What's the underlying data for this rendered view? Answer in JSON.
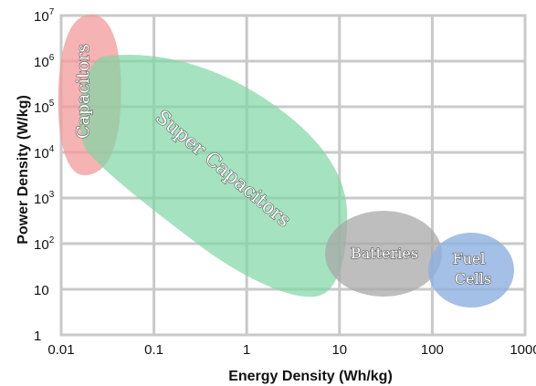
{
  "chart_data": {
    "type": "area",
    "title": "",
    "xlabel": "Energy Density (Wh/kg)",
    "ylabel": "Power Density (W/kg)",
    "x_scale": "log",
    "y_scale": "log",
    "xlim": [
      0.01,
      1000
    ],
    "ylim": [
      1,
      10000000
    ],
    "grid": true,
    "x_ticks": [
      "0.01",
      "0.1",
      "1",
      "10",
      "100",
      "1000"
    ],
    "y_ticks": [
      {
        "base": "1",
        "exp": ""
      },
      {
        "base": "10",
        "exp": ""
      },
      {
        "base": "10",
        "exp": "2"
      },
      {
        "base": "10",
        "exp": "3"
      },
      {
        "base": "10",
        "exp": "4"
      },
      {
        "base": "10",
        "exp": "5"
      },
      {
        "base": "10",
        "exp": "6"
      },
      {
        "base": "10",
        "exp": "7"
      }
    ],
    "regions": [
      {
        "name": "Capacitors",
        "energy_range": [
          0.007,
          0.04
        ],
        "power_range": [
          10000,
          10000000
        ],
        "color": "#f29a9a",
        "opacity": 0.75
      },
      {
        "name": "Super Capacitors",
        "energy_range": [
          0.02,
          10
        ],
        "power_range": [
          10,
          1000000
        ],
        "color": "#7fd6a4",
        "opacity": 0.7
      },
      {
        "name": "Batteries",
        "energy_range": [
          8,
          120
        ],
        "power_range": [
          10,
          300
        ],
        "color": "#a8a8a8",
        "opacity": 0.75
      },
      {
        "name": "Fuel Cells",
        "energy_range": [
          100,
          900
        ],
        "power_range": [
          6,
          100
        ],
        "color": "#8fb0e0",
        "opacity": 0.8
      }
    ]
  }
}
